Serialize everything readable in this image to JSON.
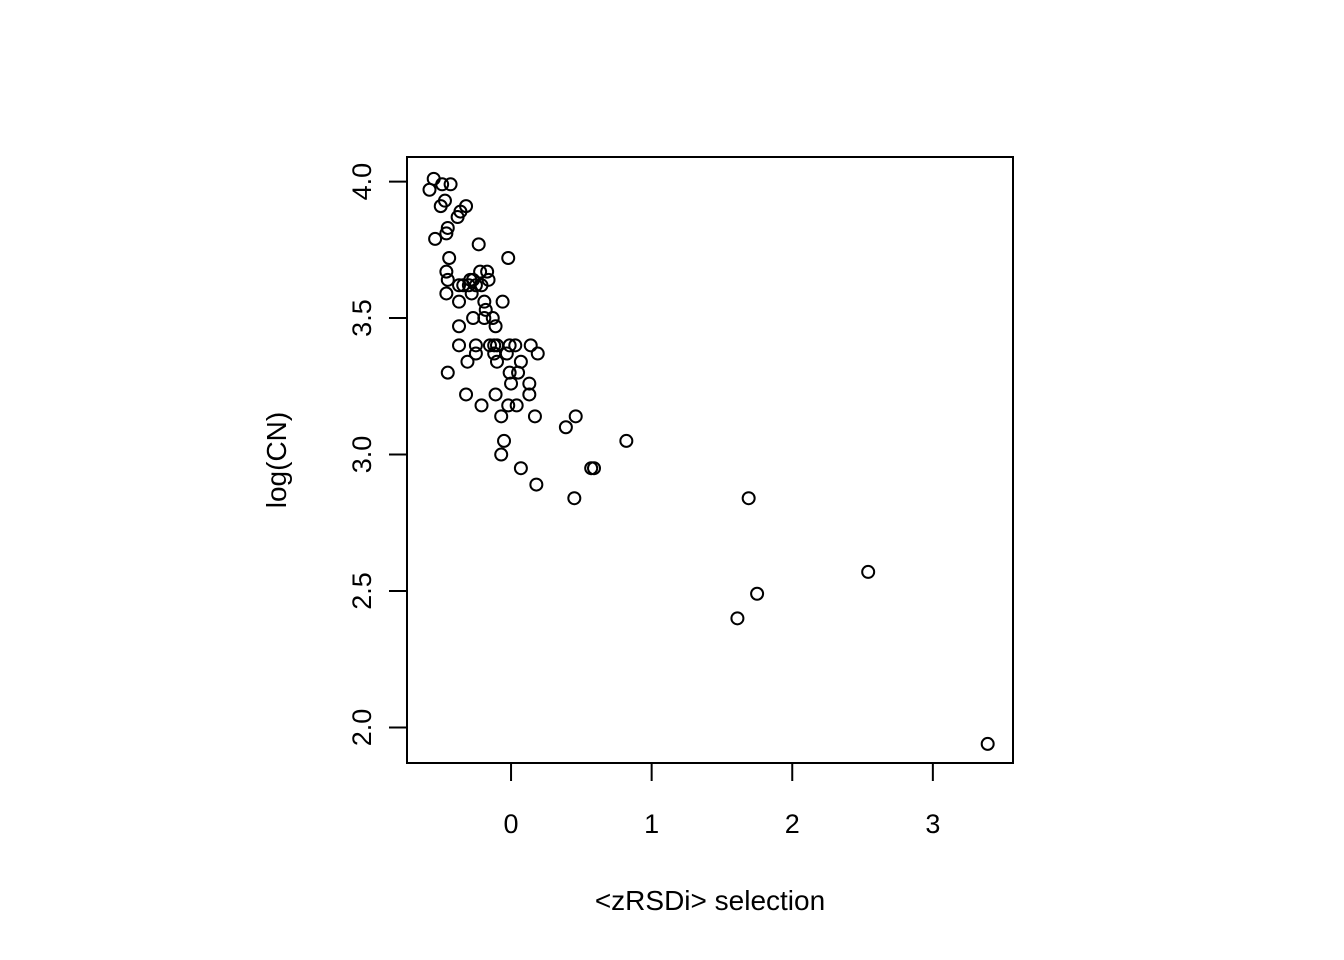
{
  "chart_data": {
    "type": "scatter",
    "title": "",
    "xlabel": "<zRSDi> selection",
    "ylabel": "log(CN)",
    "xlim": [
      -0.74,
      3.57
    ],
    "ylim": [
      1.87,
      4.09
    ],
    "xticks": [
      0,
      1,
      2,
      3
    ],
    "yticks": [
      2.0,
      2.5,
      3.0,
      3.5,
      4.0
    ],
    "xtick_labels": [
      "0",
      "1",
      "2",
      "3"
    ],
    "ytick_labels": [
      "2.0",
      "2.5",
      "3.0",
      "3.5",
      "4.0"
    ],
    "grid": false,
    "marker": "open-circle",
    "marker_color": "#000000",
    "points": [
      {
        "x": -0.55,
        "y": 4.01
      },
      {
        "x": -0.58,
        "y": 3.97
      },
      {
        "x": -0.49,
        "y": 3.99
      },
      {
        "x": -0.43,
        "y": 3.99
      },
      {
        "x": -0.47,
        "y": 3.93
      },
      {
        "x": -0.5,
        "y": 3.91
      },
      {
        "x": -0.32,
        "y": 3.91
      },
      {
        "x": -0.36,
        "y": 3.89
      },
      {
        "x": -0.38,
        "y": 3.87
      },
      {
        "x": -0.45,
        "y": 3.83
      },
      {
        "x": -0.46,
        "y": 3.81
      },
      {
        "x": -0.54,
        "y": 3.79
      },
      {
        "x": -0.23,
        "y": 3.77
      },
      {
        "x": -0.44,
        "y": 3.72
      },
      {
        "x": -0.02,
        "y": 3.72
      },
      {
        "x": -0.46,
        "y": 3.67
      },
      {
        "x": -0.22,
        "y": 3.67
      },
      {
        "x": -0.17,
        "y": 3.67
      },
      {
        "x": -0.45,
        "y": 3.64
      },
      {
        "x": -0.29,
        "y": 3.64
      },
      {
        "x": -0.27,
        "y": 3.64
      },
      {
        "x": -0.16,
        "y": 3.64
      },
      {
        "x": -0.37,
        "y": 3.62
      },
      {
        "x": -0.34,
        "y": 3.62
      },
      {
        "x": -0.3,
        "y": 3.62
      },
      {
        "x": -0.25,
        "y": 3.62
      },
      {
        "x": -0.21,
        "y": 3.62
      },
      {
        "x": -0.46,
        "y": 3.59
      },
      {
        "x": -0.28,
        "y": 3.59
      },
      {
        "x": -0.37,
        "y": 3.56
      },
      {
        "x": -0.19,
        "y": 3.56
      },
      {
        "x": -0.06,
        "y": 3.56
      },
      {
        "x": -0.18,
        "y": 3.53
      },
      {
        "x": -0.27,
        "y": 3.5
      },
      {
        "x": -0.19,
        "y": 3.5
      },
      {
        "x": -0.13,
        "y": 3.5
      },
      {
        "x": -0.37,
        "y": 3.47
      },
      {
        "x": -0.11,
        "y": 3.47
      },
      {
        "x": -0.37,
        "y": 3.4
      },
      {
        "x": -0.25,
        "y": 3.4
      },
      {
        "x": -0.15,
        "y": 3.4
      },
      {
        "x": -0.12,
        "y": 3.4
      },
      {
        "x": -0.1,
        "y": 3.4
      },
      {
        "x": -0.01,
        "y": 3.4
      },
      {
        "x": 0.03,
        "y": 3.4
      },
      {
        "x": 0.14,
        "y": 3.4
      },
      {
        "x": -0.25,
        "y": 3.37
      },
      {
        "x": -0.12,
        "y": 3.37
      },
      {
        "x": -0.03,
        "y": 3.37
      },
      {
        "x": 0.19,
        "y": 3.37
      },
      {
        "x": -0.31,
        "y": 3.34
      },
      {
        "x": -0.1,
        "y": 3.34
      },
      {
        "x": 0.07,
        "y": 3.34
      },
      {
        "x": -0.45,
        "y": 3.3
      },
      {
        "x": -0.01,
        "y": 3.3
      },
      {
        "x": 0.05,
        "y": 3.3
      },
      {
        "x": 0.0,
        "y": 3.26
      },
      {
        "x": 0.13,
        "y": 3.26
      },
      {
        "x": -0.32,
        "y": 3.22
      },
      {
        "x": -0.11,
        "y": 3.22
      },
      {
        "x": 0.13,
        "y": 3.22
      },
      {
        "x": -0.21,
        "y": 3.18
      },
      {
        "x": -0.02,
        "y": 3.18
      },
      {
        "x": 0.04,
        "y": 3.18
      },
      {
        "x": -0.07,
        "y": 3.14
      },
      {
        "x": 0.17,
        "y": 3.14
      },
      {
        "x": 0.46,
        "y": 3.14
      },
      {
        "x": 0.39,
        "y": 3.1
      },
      {
        "x": -0.05,
        "y": 3.05
      },
      {
        "x": 0.82,
        "y": 3.05
      },
      {
        "x": -0.07,
        "y": 3.0
      },
      {
        "x": 0.07,
        "y": 2.95
      },
      {
        "x": 0.57,
        "y": 2.95
      },
      {
        "x": 0.59,
        "y": 2.95
      },
      {
        "x": 0.18,
        "y": 2.89
      },
      {
        "x": 0.45,
        "y": 2.84
      },
      {
        "x": 1.69,
        "y": 2.84
      },
      {
        "x": 2.54,
        "y": 2.57
      },
      {
        "x": 1.75,
        "y": 2.49
      },
      {
        "x": 1.61,
        "y": 2.4
      },
      {
        "x": 3.39,
        "y": 1.94
      }
    ]
  }
}
